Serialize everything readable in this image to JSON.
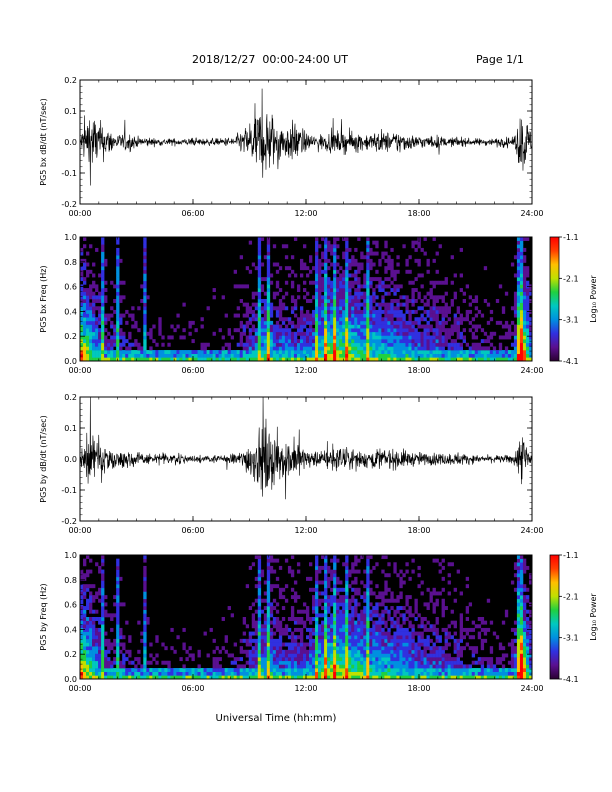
{
  "header": {
    "date_range": "2018/12/27  00:00-24:00 UT",
    "page": "Page 1/1"
  },
  "footer": {
    "xlabel": "Universal Time (hh:mm)"
  },
  "colors": {
    "trace": "#000000",
    "spectrogram_background": "#000000",
    "colormap": [
      "#2a0030",
      "#5a1090",
      "#3030e0",
      "#0090e0",
      "#00c8c0",
      "#20d040",
      "#c0e000",
      "#ffc000",
      "#ff4000",
      "#ff0000"
    ]
  },
  "chart_data": [
    {
      "id": "bx-waveform",
      "type": "line",
      "ylabel": "PG5 bx dB/dt (nT/sec)",
      "x_ticks": [
        "00:00",
        "06:00",
        "12:00",
        "18:00",
        "24:00"
      ],
      "y_ticks": [
        "0.2",
        "0.1",
        "0.0",
        "-0.1",
        "-0.2"
      ],
      "xlim": [
        0,
        24
      ],
      "ylim": [
        -0.2,
        0.2
      ],
      "grid": false,
      "series": [
        {
          "x": [
            0,
            0.5,
            1,
            1.5,
            2,
            2.5,
            3,
            3.5,
            4,
            4.5,
            5,
            5.5,
            6,
            6.5,
            7,
            7.5,
            8,
            8.5,
            9,
            9.5,
            10,
            10.5,
            11,
            11.5,
            12,
            12.5,
            13,
            13.5,
            14,
            14.5,
            15,
            15.5,
            16,
            16.5,
            17,
            17.5,
            18,
            18.5,
            19,
            19.5,
            20,
            20.5,
            21,
            21.5,
            22,
            22.5,
            23,
            23.5,
            24
          ],
          "amplitude": [
            0.04,
            0.2,
            0.12,
            0.08,
            0.04,
            0.06,
            0.03,
            0.03,
            0.02,
            0.02,
            0.02,
            0.02,
            0.02,
            0.02,
            0.02,
            0.02,
            0.03,
            0.05,
            0.12,
            0.2,
            0.2,
            0.12,
            0.1,
            0.12,
            0.05,
            0.04,
            0.05,
            0.06,
            0.06,
            0.06,
            0.05,
            0.05,
            0.07,
            0.05,
            0.07,
            0.04,
            0.04,
            0.03,
            0.04,
            0.02,
            0.03,
            0.02,
            0.02,
            0.02,
            0.02,
            0.03,
            0.02,
            0.2,
            0.04
          ]
        }
      ]
    },
    {
      "id": "bx-spectrogram",
      "type": "heatmap",
      "ylabel": "PG5 bx Freq (Hz)",
      "x_ticks": [
        "00:00",
        "06:00",
        "12:00",
        "18:00",
        "24:00"
      ],
      "y_ticks": [
        "1.0",
        "0.8",
        "0.6",
        "0.4",
        "0.2",
        "0.0"
      ],
      "xlim": [
        0,
        24
      ],
      "ylim": [
        0,
        1.0
      ],
      "colorbar": {
        "label": "Log₁₀ Power",
        "ticks": [
          "-1.1",
          "-2.1",
          "-3.1",
          "-4.1"
        ],
        "range": [
          -4.1,
          -1.1
        ]
      },
      "activity": [
        0.8,
        0.55,
        0.35,
        0.2,
        0.25,
        0.15,
        0.12,
        0.1,
        0.1,
        0.1,
        0.08,
        0.08,
        0.08,
        0.08,
        0.1,
        0.1,
        0.12,
        0.15,
        0.25,
        0.35,
        0.45,
        0.3,
        0.3,
        0.3,
        0.3,
        0.38,
        0.55,
        0.6,
        0.6,
        0.55,
        0.5,
        0.45,
        0.45,
        0.4,
        0.4,
        0.35,
        0.3,
        0.28,
        0.3,
        0.22,
        0.25,
        0.2,
        0.15,
        0.15,
        0.12,
        0.12,
        0.15,
        0.85,
        0.25
      ],
      "spikes": [
        1.2,
        2.0,
        3.5,
        9.5,
        10.0,
        12.5,
        13.0,
        13.5,
        14.2,
        15.3,
        23.3,
        23.5
      ]
    },
    {
      "id": "by-waveform",
      "type": "line",
      "ylabel": "PG5 by dB/dt (nT/sec)",
      "x_ticks": [
        "00:00",
        "06:00",
        "12:00",
        "18:00",
        "24:00"
      ],
      "y_ticks": [
        "0.2",
        "0.1",
        "0.0",
        "-0.1",
        "-0.2"
      ],
      "xlim": [
        0,
        24
      ],
      "ylim": [
        -0.2,
        0.2
      ],
      "grid": false,
      "series": [
        {
          "x": [
            0,
            0.5,
            1,
            1.5,
            2,
            2.5,
            3,
            3.5,
            4,
            4.5,
            5,
            5.5,
            6,
            6.5,
            7,
            7.5,
            8,
            8.5,
            9,
            9.5,
            10,
            10.5,
            11,
            11.5,
            12,
            12.5,
            13,
            13.5,
            14,
            14.5,
            15,
            15.5,
            16,
            16.5,
            17,
            17.5,
            18,
            18.5,
            19,
            19.5,
            20,
            20.5,
            21,
            21.5,
            22,
            22.5,
            23,
            23.5,
            24
          ],
          "amplitude": [
            0.05,
            0.2,
            0.1,
            0.07,
            0.04,
            0.05,
            0.04,
            0.03,
            0.03,
            0.03,
            0.03,
            0.03,
            0.02,
            0.02,
            0.02,
            0.02,
            0.03,
            0.04,
            0.1,
            0.16,
            0.2,
            0.14,
            0.1,
            0.12,
            0.05,
            0.04,
            0.06,
            0.07,
            0.06,
            0.06,
            0.05,
            0.05,
            0.07,
            0.05,
            0.06,
            0.04,
            0.04,
            0.03,
            0.04,
            0.03,
            0.04,
            0.03,
            0.02,
            0.02,
            0.02,
            0.02,
            0.03,
            0.15,
            0.03
          ]
        }
      ]
    },
    {
      "id": "by-spectrogram",
      "type": "heatmap",
      "ylabel": "PG5 by Freq (Hz)",
      "x_ticks": [
        "00:00",
        "06:00",
        "12:00",
        "18:00",
        "24:00"
      ],
      "y_ticks": [
        "1.0",
        "0.8",
        "0.6",
        "0.4",
        "0.2",
        "0.0"
      ],
      "xlim": [
        0,
        24
      ],
      "ylim": [
        0,
        1.0
      ],
      "colorbar": {
        "label": "Log₁₀ Power",
        "ticks": [
          "-1.1",
          "-2.1",
          "-3.1",
          "-4.1"
        ],
        "range": [
          -4.1,
          -1.1
        ]
      },
      "activity": [
        0.8,
        0.55,
        0.35,
        0.2,
        0.25,
        0.15,
        0.12,
        0.1,
        0.1,
        0.1,
        0.08,
        0.08,
        0.08,
        0.08,
        0.1,
        0.1,
        0.12,
        0.15,
        0.25,
        0.35,
        0.45,
        0.3,
        0.3,
        0.3,
        0.3,
        0.38,
        0.55,
        0.6,
        0.6,
        0.55,
        0.5,
        0.45,
        0.45,
        0.4,
        0.4,
        0.35,
        0.3,
        0.28,
        0.3,
        0.22,
        0.25,
        0.2,
        0.15,
        0.15,
        0.12,
        0.12,
        0.15,
        0.85,
        0.25
      ],
      "spikes": [
        1.2,
        2.0,
        3.5,
        9.5,
        10.0,
        12.5,
        13.0,
        13.5,
        14.2,
        15.3,
        23.3,
        23.5
      ]
    }
  ]
}
